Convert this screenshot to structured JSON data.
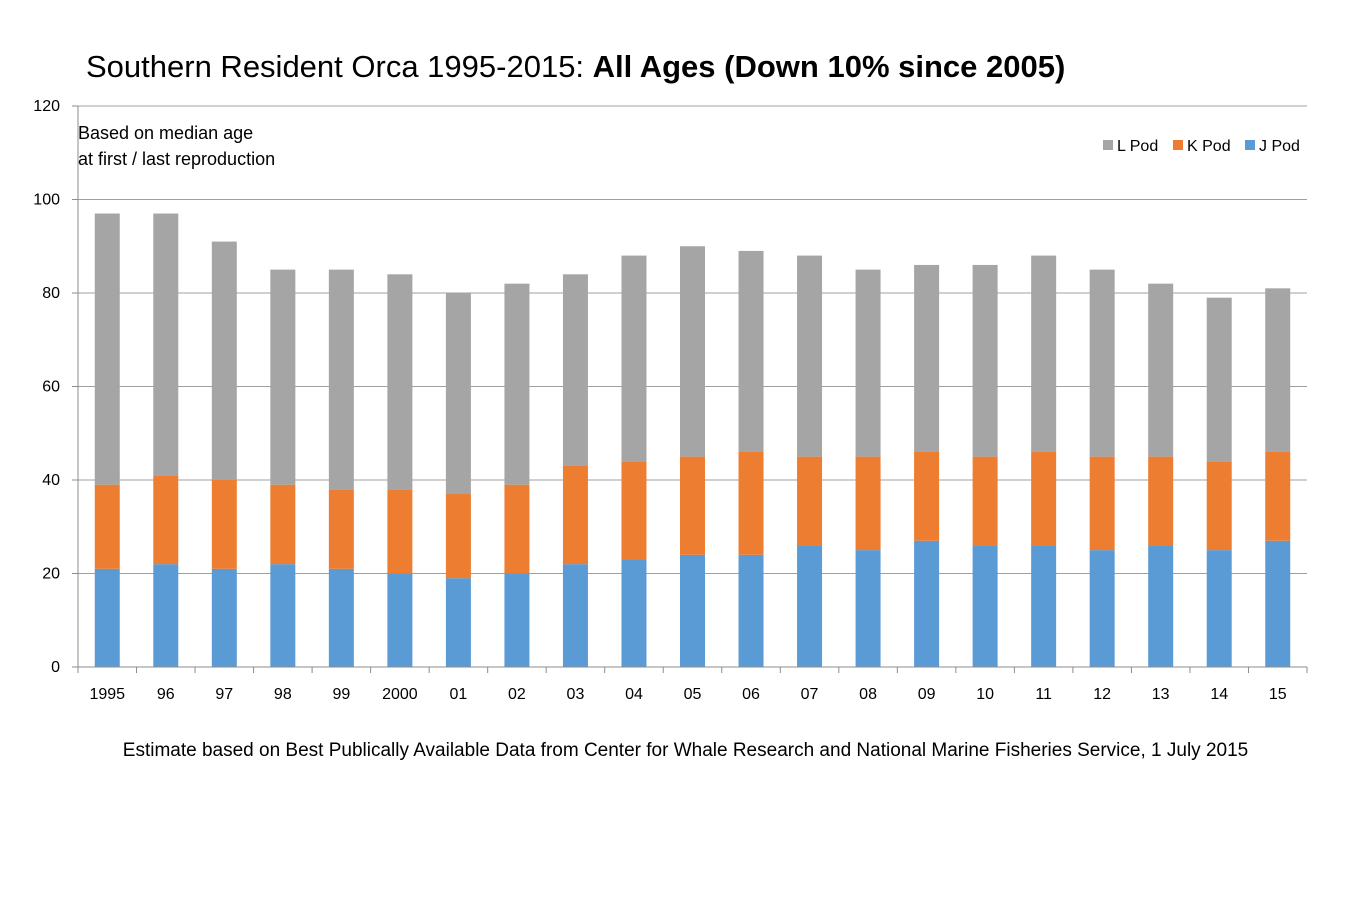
{
  "chart_data": {
    "type": "bar",
    "stacked": true,
    "title": {
      "normal": "Southern Resident Orca 1995-2015: ",
      "bold": "All Ages (Down 10% since 2005)"
    },
    "annotation": [
      "Based on median age",
      "at first / last reproduction"
    ],
    "footnote": "Estimate based on Best Publically Available Data from Center for Whale Research and National Marine Fisheries Service, 1 July 2015",
    "categories": [
      "1995",
      "96",
      "97",
      "98",
      "99",
      "2000",
      "01",
      "02",
      "03",
      "04",
      "05",
      "06",
      "07",
      "08",
      "09",
      "10",
      "11",
      "12",
      "13",
      "14",
      "15"
    ],
    "series": [
      {
        "name": "J Pod",
        "color": "#5b9bd5",
        "values": [
          21,
          22,
          21,
          22,
          21,
          20,
          19,
          20,
          22,
          23,
          24,
          24,
          26,
          25,
          27,
          26,
          26,
          25,
          26,
          25,
          27
        ]
      },
      {
        "name": "K Pod",
        "color": "#ed7d31",
        "values": [
          18,
          19,
          19,
          17,
          17,
          18,
          18,
          19,
          21,
          21,
          21,
          22,
          19,
          20,
          19,
          19,
          20,
          20,
          19,
          19,
          19
        ]
      },
      {
        "name": "L Pod",
        "color": "#a5a5a5",
        "values": [
          58,
          56,
          51,
          46,
          47,
          46,
          43,
          43,
          41,
          44,
          45,
          43,
          43,
          40,
          40,
          41,
          42,
          40,
          37,
          35,
          35
        ]
      }
    ],
    "legend_order": [
      "L Pod",
      "K Pod",
      "J Pod"
    ],
    "legend_position": "top-right",
    "ylim": [
      0,
      120
    ],
    "yticks": [
      "0",
      "20",
      "40",
      "60",
      "80",
      "100",
      "120"
    ],
    "xlabel": "",
    "ylabel": "",
    "grid": true
  }
}
